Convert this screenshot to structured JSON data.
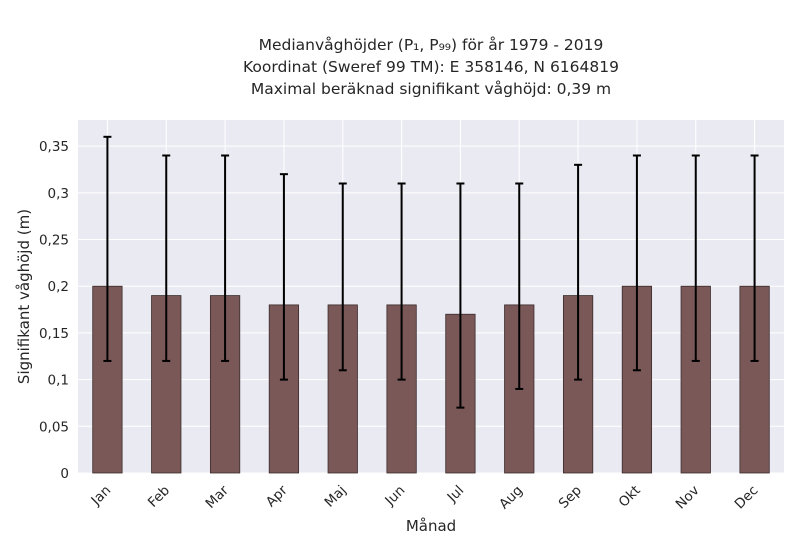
{
  "chart_data": {
    "type": "bar",
    "title_lines": [
      "Medianvåghöjder (P₁, P₉₉) för år 1979 - 2019",
      "Koordinat (Sweref 99 TM): E 358146, N 6164819",
      "Maximal beräknad signifikant våghöjd: 0,39 m"
    ],
    "xlabel": "Månad",
    "ylabel": "Signifikant våghöjd (m)",
    "categories": [
      "Jan",
      "Feb",
      "Mar",
      "Apr",
      "Maj",
      "Jun",
      "Jul",
      "Aug",
      "Sep",
      "Okt",
      "Nov",
      "Dec"
    ],
    "values": [
      0.2,
      0.19,
      0.19,
      0.18,
      0.18,
      0.18,
      0.17,
      0.18,
      0.19,
      0.2,
      0.2,
      0.2
    ],
    "p1": [
      0.12,
      0.12,
      0.12,
      0.1,
      0.11,
      0.1,
      0.07,
      0.09,
      0.1,
      0.11,
      0.12,
      0.12
    ],
    "p99": [
      0.36,
      0.34,
      0.34,
      0.32,
      0.31,
      0.31,
      0.31,
      0.31,
      0.33,
      0.34,
      0.34,
      0.34
    ],
    "ylim": [
      0,
      0.378
    ],
    "yticks": [
      0,
      0.05,
      0.1,
      0.15,
      0.2,
      0.25,
      0.3,
      0.35
    ],
    "ytick_labels": [
      "0",
      "0,05",
      "0,1",
      "0,15",
      "0,2",
      "0,25",
      "0,3",
      "0,35"
    ],
    "grid": true,
    "colors": {
      "bar": "#7a5858",
      "bar_edge": "#3a2a2a",
      "error": "#000000",
      "background": "#eaeaf2",
      "grid": "#ffffff"
    }
  }
}
